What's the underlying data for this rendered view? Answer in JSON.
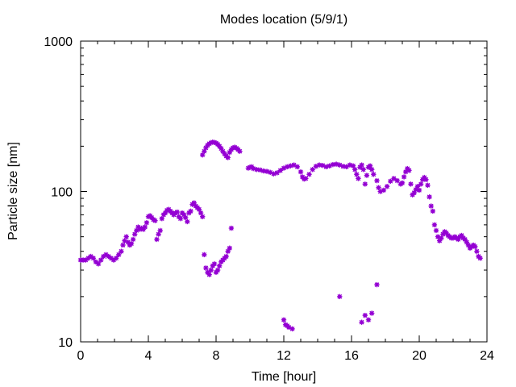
{
  "chart_data": {
    "type": "scatter",
    "title": "Modes location (5/9/1)",
    "xlabel": "Time [hour]",
    "ylabel": "Particle size [nm]",
    "xlim": [
      0,
      24
    ],
    "ylim": [
      10,
      1000
    ],
    "yscale": "log",
    "grid": false,
    "legend": "none",
    "marker_color": "#9400d3",
    "xticks": [
      0,
      4,
      8,
      12,
      16,
      20,
      24
    ],
    "xtick_labels": [
      "0",
      "4",
      "8",
      "12",
      "16",
      "20",
      "24"
    ],
    "yticks": [
      10,
      100,
      1000
    ],
    "ytick_labels": [
      "10",
      "100",
      "1000"
    ],
    "series": [
      {
        "points": [
          [
            0.0,
            35
          ],
          [
            0.15,
            35
          ],
          [
            0.3,
            35
          ],
          [
            0.45,
            36
          ],
          [
            0.6,
            37
          ],
          [
            0.75,
            36
          ],
          [
            0.9,
            34
          ],
          [
            1.05,
            33
          ],
          [
            1.2,
            35
          ],
          [
            1.35,
            37
          ],
          [
            1.5,
            38
          ],
          [
            1.65,
            37
          ],
          [
            1.8,
            36
          ],
          [
            1.95,
            35
          ],
          [
            2.1,
            36
          ],
          [
            2.25,
            38
          ],
          [
            2.4,
            40
          ],
          [
            2.5,
            44
          ],
          [
            2.6,
            47
          ],
          [
            2.7,
            50
          ],
          [
            2.8,
            46
          ],
          [
            2.9,
            44
          ],
          [
            3.0,
            45
          ],
          [
            3.1,
            48
          ],
          [
            3.2,
            52
          ],
          [
            3.3,
            55
          ],
          [
            3.4,
            58
          ],
          [
            3.5,
            56
          ],
          [
            3.6,
            57
          ],
          [
            3.7,
            56
          ],
          [
            3.8,
            58
          ],
          [
            3.9,
            62
          ],
          [
            4.0,
            68
          ],
          [
            4.1,
            69
          ],
          [
            4.2,
            67
          ],
          [
            4.3,
            65
          ],
          [
            4.4,
            64
          ],
          [
            4.5,
            48
          ],
          [
            4.6,
            52
          ],
          [
            4.7,
            55
          ],
          [
            4.8,
            66
          ],
          [
            4.9,
            70
          ],
          [
            5.0,
            72
          ],
          [
            5.1,
            75
          ],
          [
            5.2,
            76
          ],
          [
            5.3,
            74
          ],
          [
            5.4,
            72
          ],
          [
            5.5,
            70
          ],
          [
            5.6,
            72
          ],
          [
            5.7,
            73
          ],
          [
            5.8,
            68
          ],
          [
            5.9,
            66
          ],
          [
            6.0,
            72
          ],
          [
            6.1,
            70
          ],
          [
            6.2,
            67
          ],
          [
            6.3,
            63
          ],
          [
            6.4,
            72
          ],
          [
            6.5,
            74
          ],
          [
            6.6,
            82
          ],
          [
            6.7,
            84
          ],
          [
            6.8,
            80
          ],
          [
            6.9,
            78
          ],
          [
            7.0,
            76
          ],
          [
            7.1,
            72
          ],
          [
            7.2,
            68
          ],
          [
            7.3,
            38
          ],
          [
            7.4,
            31
          ],
          [
            7.5,
            29
          ],
          [
            7.6,
            28
          ],
          [
            7.7,
            30
          ],
          [
            7.8,
            32
          ],
          [
            7.9,
            33
          ],
          [
            8.0,
            29
          ],
          [
            8.1,
            30
          ],
          [
            8.2,
            32
          ],
          [
            8.3,
            34
          ],
          [
            8.4,
            35
          ],
          [
            8.5,
            36
          ],
          [
            8.6,
            37
          ],
          [
            8.7,
            40
          ],
          [
            8.8,
            42
          ],
          [
            8.9,
            57
          ],
          [
            7.2,
            175
          ],
          [
            7.3,
            185
          ],
          [
            7.4,
            195
          ],
          [
            7.5,
            203
          ],
          [
            7.6,
            208
          ],
          [
            7.7,
            211
          ],
          [
            7.8,
            213
          ],
          [
            7.9,
            212
          ],
          [
            8.0,
            210
          ],
          [
            8.1,
            206
          ],
          [
            8.2,
            200
          ],
          [
            8.3,
            193
          ],
          [
            8.4,
            185
          ],
          [
            8.5,
            178
          ],
          [
            8.6,
            172
          ],
          [
            8.7,
            168
          ],
          [
            8.8,
            182
          ],
          [
            8.9,
            190
          ],
          [
            9.0,
            195
          ],
          [
            9.1,
            197
          ],
          [
            9.2,
            194
          ],
          [
            9.3,
            190
          ],
          [
            9.4,
            185
          ],
          [
            9.9,
            143
          ],
          [
            10.0,
            145
          ],
          [
            10.1,
            146
          ],
          [
            10.2,
            142
          ],
          [
            10.4,
            140
          ],
          [
            10.6,
            139
          ],
          [
            10.8,
            137
          ],
          [
            11.0,
            136
          ],
          [
            11.2,
            134
          ],
          [
            11.4,
            131
          ],
          [
            11.6,
            133
          ],
          [
            11.8,
            138
          ],
          [
            12.0,
            143
          ],
          [
            12.2,
            146
          ],
          [
            12.4,
            148
          ],
          [
            12.6,
            150
          ],
          [
            12.8,
            146
          ],
          [
            13.0,
            135
          ],
          [
            13.1,
            125
          ],
          [
            13.2,
            121
          ],
          [
            13.3,
            122
          ],
          [
            13.5,
            130
          ],
          [
            13.7,
            140
          ],
          [
            13.9,
            147
          ],
          [
            14.1,
            150
          ],
          [
            14.3,
            149
          ],
          [
            14.5,
            146
          ],
          [
            14.7,
            148
          ],
          [
            14.9,
            151
          ],
          [
            15.1,
            152
          ],
          [
            15.3,
            150
          ],
          [
            15.5,
            147
          ],
          [
            15.7,
            146
          ],
          [
            15.9,
            150
          ],
          [
            16.1,
            148
          ],
          [
            16.2,
            140
          ],
          [
            16.3,
            130
          ],
          [
            16.4,
            122
          ],
          [
            16.5,
            145
          ],
          [
            16.6,
            150
          ],
          [
            16.7,
            140
          ],
          [
            16.8,
            112
          ],
          [
            16.9,
            128
          ],
          [
            17.0,
            145
          ],
          [
            17.1,
            148
          ],
          [
            17.2,
            140
          ],
          [
            17.3,
            130
          ],
          [
            17.5,
            118
          ],
          [
            17.6,
            106
          ],
          [
            17.7,
            100
          ],
          [
            17.9,
            102
          ],
          [
            18.1,
            108
          ],
          [
            18.3,
            117
          ],
          [
            18.5,
            122
          ],
          [
            18.7,
            118
          ],
          [
            18.9,
            112
          ],
          [
            19.0,
            114
          ],
          [
            19.1,
            125
          ],
          [
            19.2,
            135
          ],
          [
            19.3,
            142
          ],
          [
            19.4,
            138
          ],
          [
            19.5,
            112
          ],
          [
            19.6,
            95
          ],
          [
            19.7,
            98
          ],
          [
            19.8,
            103
          ],
          [
            19.9,
            108
          ],
          [
            20.0,
            102
          ],
          [
            20.1,
            112
          ],
          [
            20.2,
            120
          ],
          [
            20.3,
            124
          ],
          [
            20.4,
            120
          ],
          [
            20.5,
            110
          ],
          [
            20.6,
            92
          ],
          [
            20.7,
            80
          ],
          [
            20.8,
            74
          ],
          [
            20.9,
            60
          ],
          [
            21.0,
            55
          ],
          [
            21.1,
            50
          ],
          [
            21.2,
            47
          ],
          [
            21.3,
            49
          ],
          [
            21.4,
            52
          ],
          [
            21.5,
            54
          ],
          [
            21.6,
            53
          ],
          [
            21.7,
            51
          ],
          [
            21.8,
            50
          ],
          [
            21.9,
            49
          ],
          [
            22.0,
            49
          ],
          [
            22.1,
            50
          ],
          [
            22.2,
            49
          ],
          [
            22.3,
            48
          ],
          [
            22.4,
            50
          ],
          [
            22.5,
            51
          ],
          [
            22.6,
            49
          ],
          [
            22.7,
            48
          ],
          [
            22.8,
            46
          ],
          [
            22.9,
            44
          ],
          [
            23.0,
            42
          ],
          [
            23.1,
            43
          ],
          [
            23.2,
            44
          ],
          [
            23.3,
            43
          ],
          [
            23.4,
            40
          ],
          [
            23.5,
            37
          ],
          [
            23.6,
            36
          ],
          [
            12.0,
            14
          ],
          [
            12.1,
            13
          ],
          [
            12.2,
            12.8
          ],
          [
            12.3,
            12.5
          ],
          [
            12.5,
            12.2
          ],
          [
            15.3,
            20
          ],
          [
            16.6,
            13.5
          ],
          [
            16.8,
            15
          ],
          [
            17.0,
            14
          ],
          [
            17.2,
            15.5
          ],
          [
            17.5,
            24
          ]
        ]
      }
    ]
  }
}
